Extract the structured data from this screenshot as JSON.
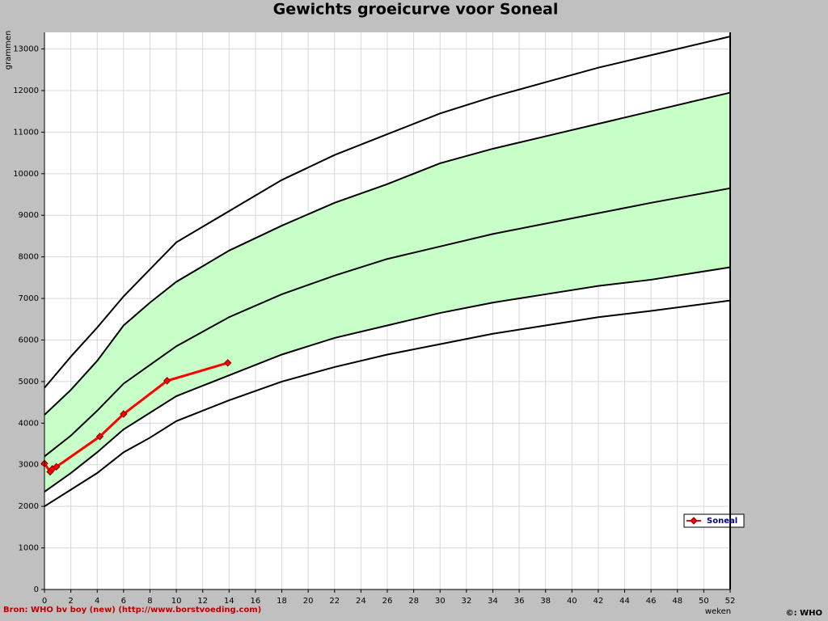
{
  "chart_data": {
    "type": "line",
    "title": "Gewichts groeicurve voor Soneal",
    "ylabel": "grammen",
    "xlabel": "weken",
    "xlim": [
      0,
      52
    ],
    "ylim": [
      0,
      13400
    ],
    "xticks": [
      0,
      2,
      4,
      6,
      8,
      10,
      12,
      14,
      16,
      18,
      20,
      22,
      24,
      26,
      28,
      30,
      32,
      34,
      36,
      38,
      40,
      42,
      44,
      46,
      48,
      50,
      52
    ],
    "yticks": [
      0,
      1000,
      2000,
      3000,
      4000,
      5000,
      6000,
      7000,
      8000,
      9000,
      10000,
      11000,
      12000,
      13000
    ],
    "grid": true,
    "curve_x": [
      0,
      2,
      4,
      6,
      8,
      10,
      14,
      18,
      22,
      26,
      30,
      34,
      38,
      42,
      46,
      52
    ],
    "curves": [
      {
        "color": "#000000",
        "values": [
          2000,
          2400,
          2800,
          3300,
          3650,
          4050,
          4550,
          5000,
          5350,
          5650,
          5900,
          6150,
          6350,
          6550,
          6700,
          6950
        ]
      },
      {
        "color": "#000000",
        "values": [
          2350,
          2800,
          3300,
          3850,
          4250,
          4650,
          5150,
          5650,
          6050,
          6350,
          6650,
          6900,
          7100,
          7300,
          7450,
          7750
        ]
      },
      {
        "color": "#000000",
        "values": [
          3200,
          3700,
          4300,
          4950,
          5400,
          5850,
          6550,
          7100,
          7550,
          7950,
          8250,
          8550,
          8800,
          9050,
          9300,
          9650
        ]
      },
      {
        "color": "#000000",
        "values": [
          4200,
          4800,
          5500,
          6350,
          6900,
          7400,
          8150,
          8750,
          9300,
          9750,
          10250,
          10600,
          10900,
          11200,
          11500,
          11950
        ]
      },
      {
        "color": "#000000",
        "values": [
          4850,
          5600,
          6300,
          7050,
          7700,
          8350,
          9100,
          9850,
          10450,
          10950,
          11450,
          11850,
          12200,
          12550,
          12850,
          13300
        ]
      }
    ],
    "band": {
      "between": [
        1,
        3
      ],
      "color": "#c8ffc8"
    },
    "series": [
      {
        "name": "Soneal",
        "color": "#ff0000",
        "x": [
          0,
          0.43,
          0.6,
          0.9,
          4.2,
          6.0,
          9.3,
          13.9
        ],
        "values": [
          3030,
          2830,
          2900,
          2950,
          3680,
          4220,
          5020,
          5450
        ]
      }
    ],
    "source": "Bron: WHO bv boy (new) (http://www.borstvoeding.com)",
    "copyright": "©: WHO"
  }
}
